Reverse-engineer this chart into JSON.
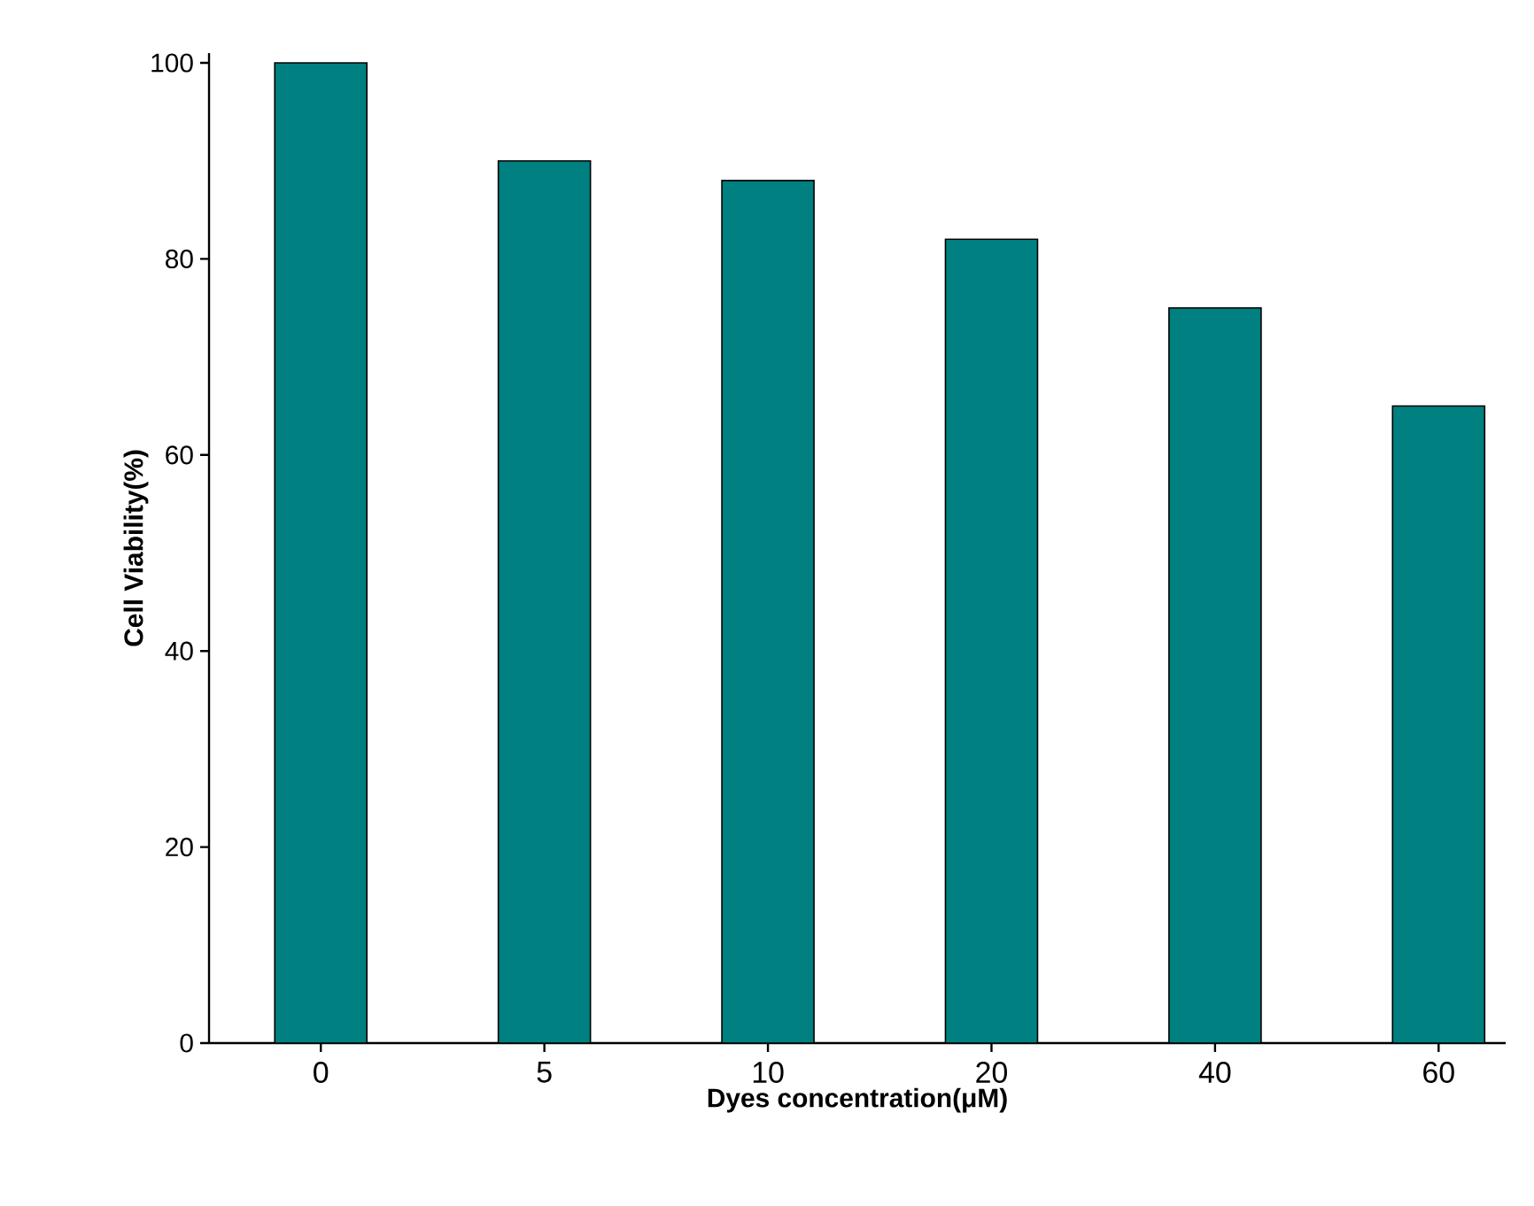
{
  "chart_data": {
    "type": "bar",
    "xlabel": "Dyes concentration(μM)",
    "ylabel": "Cell Viability(%)",
    "categories": [
      "0",
      "5",
      "10",
      "20",
      "40",
      "60"
    ],
    "values": [
      100,
      90,
      88,
      82,
      75,
      65
    ],
    "color": "#008080",
    "ylim": [
      0,
      101
    ],
    "yticks": [
      0,
      20,
      40,
      60,
      80,
      100
    ],
    "grid": false
  }
}
